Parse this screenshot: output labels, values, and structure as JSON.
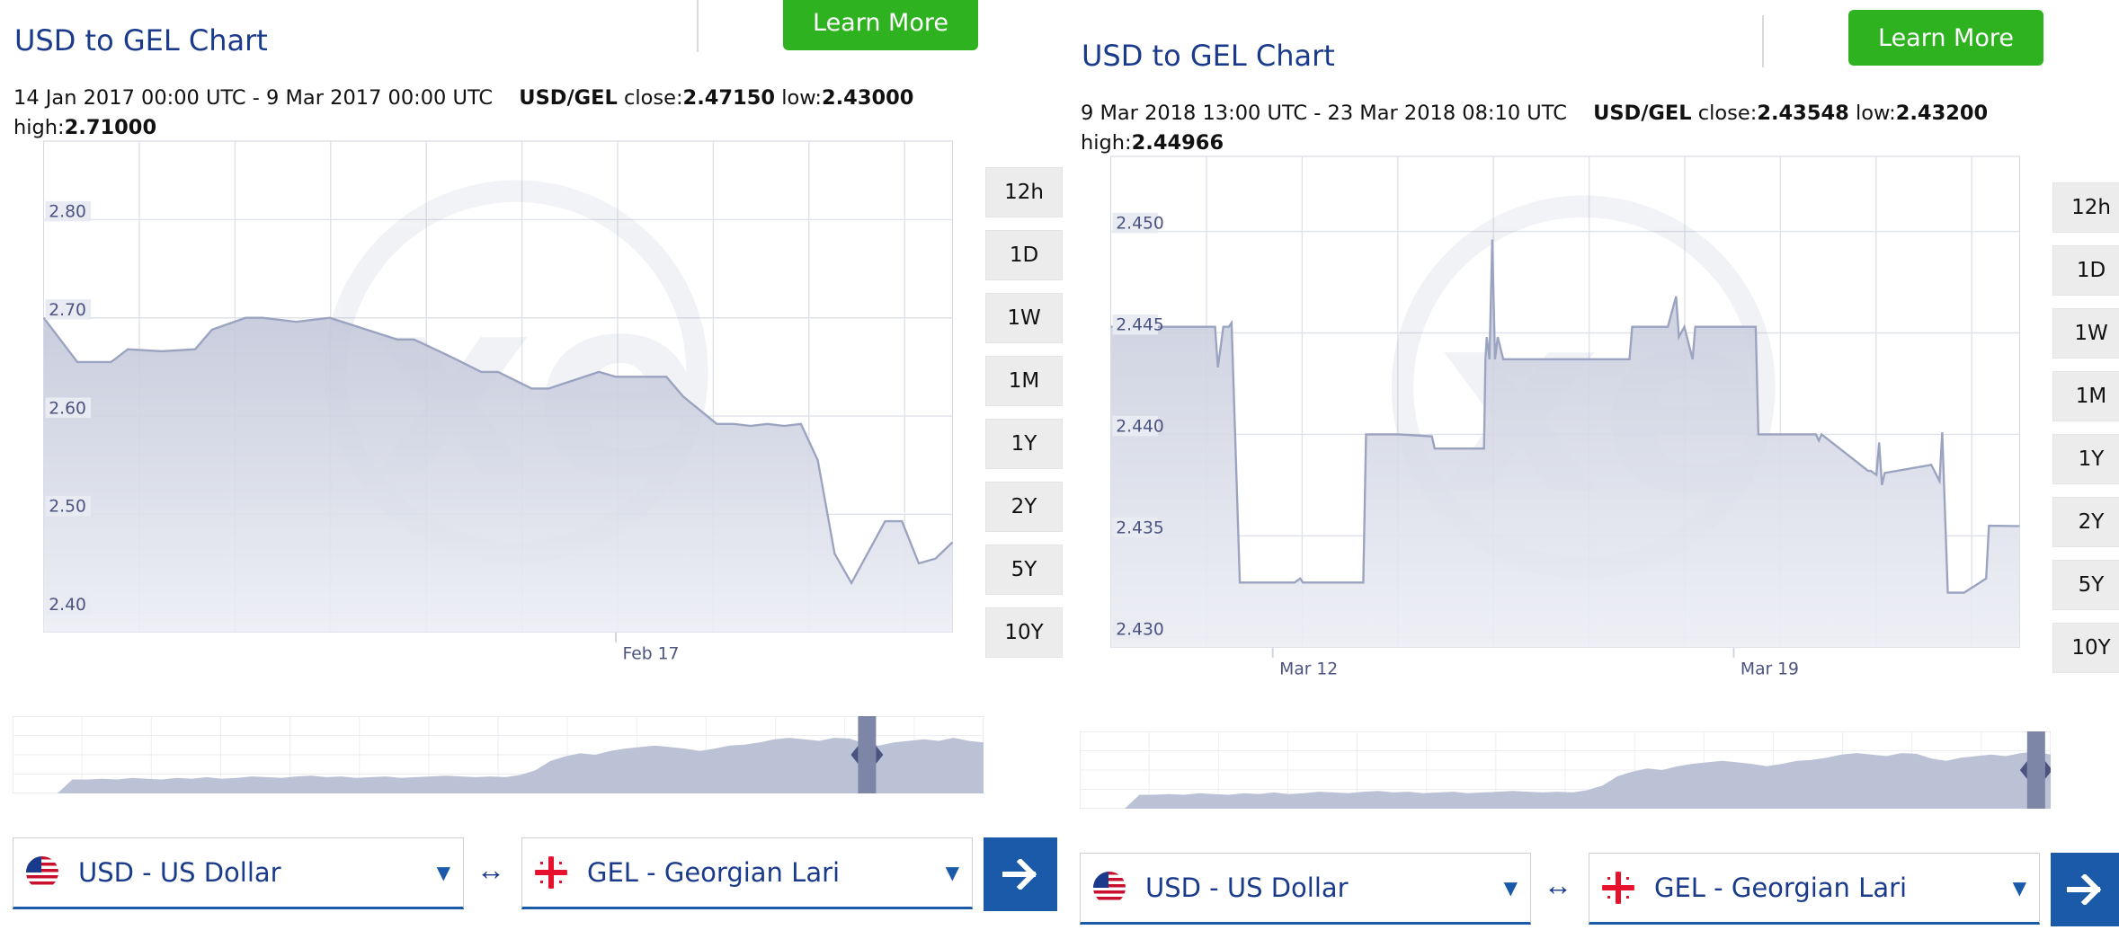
{
  "colors": {
    "brand_blue": "#1a3a8c",
    "accent_green": "#2fb21f",
    "line": "#9aa3bf",
    "area": "#c7cbdb",
    "button_blue": "#1a5aa8"
  },
  "panels": [
    {
      "title": "USD to GEL Chart",
      "learn_more": "Learn More",
      "range_text": "14 Jan 2017 00:00 UTC - 9 Mar 2017 00:00 UTC",
      "pair": "USD/GEL",
      "close_label": "close:",
      "close": "2.47150",
      "low_label": "low:",
      "low": "2.43000",
      "high_label": "high:",
      "high": "2.71000",
      "timeframes": [
        "12h",
        "1D",
        "1W",
        "1M",
        "1Y",
        "2Y",
        "5Y",
        "10Y"
      ],
      "from_currency": "USD - US Dollar",
      "to_currency": "GEL - Georgian Lari",
      "swap_symbol": "↔",
      "watermark_icon": "xe-logo-watermark",
      "chart_data": {
        "type": "area",
        "ylim": [
          2.38,
          2.88
        ],
        "y_ticks": [
          2.8,
          2.7,
          2.6,
          2.5,
          2.4
        ],
        "y_tick_labels": [
          "2.80",
          "2.70",
          "2.60",
          "2.50",
          "2.40"
        ],
        "x_range": [
          "2017-01-14",
          "2017-03-09"
        ],
        "x_tick_labels": [
          {
            "label": "Feb 17",
            "date": "2017-02-17"
          }
        ],
        "series": [
          {
            "x": [
              "2017-01-14",
              "2017-01-16",
              "2017-01-18",
              "2017-01-19",
              "2017-01-21",
              "2017-01-23",
              "2017-01-24",
              "2017-01-26",
              "2017-01-27",
              "2017-01-29",
              "2017-01-31",
              "2017-02-04",
              "2017-02-05",
              "2017-02-07",
              "2017-02-09",
              "2017-02-10",
              "2017-02-12",
              "2017-02-13",
              "2017-02-16",
              "2017-02-17",
              "2017-02-20",
              "2017-02-21",
              "2017-02-23",
              "2017-02-24",
              "2017-02-25",
              "2017-02-26",
              "2017-02-27",
              "2017-02-28",
              "2017-03-01",
              "2017-03-02",
              "2017-03-03",
              "2017-03-05",
              "2017-03-06",
              "2017-03-07",
              "2017-03-08",
              "2017-03-09"
            ],
            "y": [
              2.7,
              2.655,
              2.655,
              2.668,
              2.666,
              2.668,
              2.688,
              2.7,
              2.7,
              2.696,
              2.7,
              2.678,
              2.678,
              2.662,
              2.645,
              2.645,
              2.628,
              2.628,
              2.645,
              2.64,
              2.64,
              2.62,
              2.592,
              2.592,
              2.59,
              2.592,
              2.59,
              2.592,
              2.555,
              2.46,
              2.43,
              2.493,
              2.493,
              2.45,
              2.455,
              2.4715
            ]
          }
        ]
      },
      "mini_chart": {
        "type": "area",
        "ylim": [
          0,
          1
        ],
        "values": [
          0.0,
          0.0,
          0.0,
          0.0,
          0.18,
          0.18,
          0.19,
          0.18,
          0.2,
          0.19,
          0.18,
          0.2,
          0.19,
          0.21,
          0.19,
          0.2,
          0.22,
          0.21,
          0.2,
          0.22,
          0.23,
          0.21,
          0.22,
          0.2,
          0.21,
          0.22,
          0.2,
          0.21,
          0.22,
          0.23,
          0.22,
          0.21,
          0.22,
          0.21,
          0.24,
          0.3,
          0.42,
          0.48,
          0.52,
          0.5,
          0.55,
          0.58,
          0.6,
          0.62,
          0.6,
          0.58,
          0.55,
          0.58,
          0.62,
          0.63,
          0.66,
          0.7,
          0.72,
          0.7,
          0.68,
          0.72,
          0.71,
          0.65,
          0.62,
          0.66,
          0.68,
          0.7,
          0.68,
          0.72,
          0.68,
          0.66
        ]
      }
    },
    {
      "title": "USD to GEL Chart",
      "learn_more": "Learn More",
      "range_text": "9 Mar 2018 13:00 UTC - 23 Mar 2018 08:10 UTC",
      "pair": "USD/GEL",
      "close_label": "close:",
      "close": "2.43548",
      "low_label": "low:",
      "low": "2.43200",
      "high_label": "high:",
      "high": "2.44966",
      "timeframes": [
        "12h",
        "1D",
        "1W",
        "1M",
        "1Y",
        "2Y",
        "5Y",
        "10Y"
      ],
      "from_currency": "USD - US Dollar",
      "to_currency": "GEL - Georgian Lari",
      "swap_symbol": "↔",
      "watermark_icon": "xe-logo-watermark",
      "chart_data": {
        "type": "area",
        "ylim": [
          2.4295,
          2.4537
        ],
        "y_ticks": [
          2.45,
          2.445,
          2.44,
          2.435,
          2.43
        ],
        "y_tick_labels": [
          "2.450",
          "2.445",
          "2.440",
          "2.435",
          "2.430"
        ],
        "x_range": [
          "2018-03-09 13:00",
          "2018-03-23 08:10"
        ],
        "x_tick_labels": [
          {
            "label": "Mar 12",
            "date": "2018-03-12 00:00"
          },
          {
            "label": "Mar 19",
            "date": "2018-03-19 00:00"
          }
        ],
        "series": [
          {
            "x": [
              "2018-03-09 13:00",
              "2018-03-10 13:00",
              "2018-03-11 03:00",
              "2018-03-11 04:00",
              "2018-03-11 06:00",
              "2018-03-11 08:00",
              "2018-03-11 09:00",
              "2018-03-11 12:00",
              "2018-03-12 08:00",
              "2018-03-12 10:00",
              "2018-03-12 11:00",
              "2018-03-13 09:00",
              "2018-03-13 10:00",
              "2018-03-13 22:00",
              "2018-03-14 10:00",
              "2018-03-14 11:00",
              "2018-03-15 00:00",
              "2018-03-15 05:00",
              "2018-03-15 05:30",
              "2018-03-15 06:00",
              "2018-03-15 07:00",
              "2018-03-15 08:00",
              "2018-03-15 09:00",
              "2018-03-15 10:00",
              "2018-03-15 12:00",
              "2018-03-17 10:00",
              "2018-03-17 11:00",
              "2018-03-18 00:00",
              "2018-03-18 03:00",
              "2018-03-18 04:00",
              "2018-03-18 06:00",
              "2018-03-18 09:00",
              "2018-03-18 10:00",
              "2018-03-19 08:00",
              "2018-03-19 09:00",
              "2018-03-20 06:00",
              "2018-03-20 07:00",
              "2018-03-20 08:00",
              "2018-03-21 01:00",
              "2018-03-21 02:00",
              "2018-03-21 03:00",
              "2018-03-21 04:00",
              "2018-03-21 05:00",
              "2018-03-21 06:00",
              "2018-03-21 07:00",
              "2018-03-22 00:00",
              "2018-03-22 03:00",
              "2018-03-22 04:00",
              "2018-03-22 06:00",
              "2018-03-22 07:00",
              "2018-03-22 08:00",
              "2018-03-22 12:00",
              "2018-03-22 20:00",
              "2018-03-22 21:00",
              "2018-03-23 08:10"
            ],
            "y": [
              2.4453,
              2.4453,
              2.4453,
              2.4433,
              2.4453,
              2.4453,
              2.4455,
              2.4327,
              2.4327,
              2.4329,
              2.4327,
              2.4327,
              2.44,
              2.44,
              2.4399,
              2.4393,
              2.4393,
              2.4393,
              2.4437,
              2.4448,
              2.4437,
              2.4496,
              2.4437,
              2.4448,
              2.4437,
              2.4437,
              2.4453,
              2.4453,
              2.4468,
              2.4448,
              2.4453,
              2.4437,
              2.4453,
              2.4453,
              2.44,
              2.44,
              2.4397,
              2.44,
              2.4382,
              2.4382,
              2.4381,
              2.438,
              2.4396,
              2.4375,
              2.4381,
              2.4385,
              2.4377,
              2.4401,
              2.4322,
              2.4322,
              2.4322,
              2.4322,
              2.4329,
              2.4355,
              2.43548
            ]
          }
        ]
      },
      "mini_chart": {
        "type": "area",
        "ylim": [
          0,
          1
        ],
        "values": [
          0.0,
          0.0,
          0.0,
          0.0,
          0.18,
          0.18,
          0.19,
          0.18,
          0.2,
          0.19,
          0.18,
          0.2,
          0.19,
          0.21,
          0.19,
          0.2,
          0.22,
          0.21,
          0.2,
          0.22,
          0.23,
          0.21,
          0.22,
          0.2,
          0.21,
          0.22,
          0.2,
          0.21,
          0.22,
          0.23,
          0.22,
          0.21,
          0.22,
          0.21,
          0.24,
          0.3,
          0.42,
          0.48,
          0.52,
          0.5,
          0.55,
          0.58,
          0.6,
          0.62,
          0.6,
          0.58,
          0.55,
          0.58,
          0.62,
          0.63,
          0.66,
          0.7,
          0.72,
          0.7,
          0.68,
          0.72,
          0.71,
          0.65,
          0.62,
          0.66,
          0.68,
          0.7,
          0.68,
          0.72,
          0.74,
          0.7
        ]
      }
    }
  ]
}
